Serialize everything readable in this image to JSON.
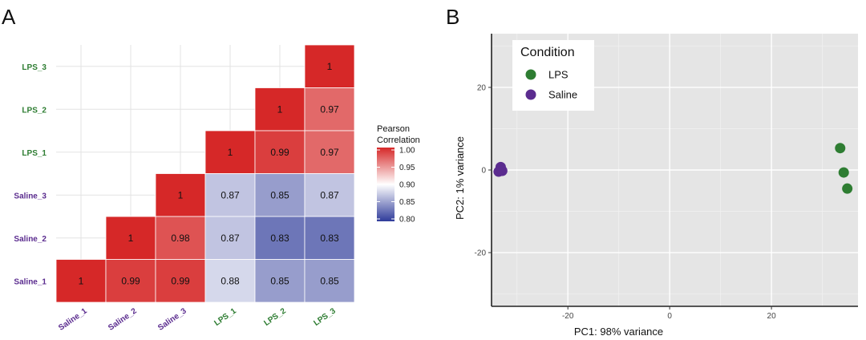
{
  "chart_data": [
    {
      "type": "heatmap",
      "panel": "A",
      "rows": [
        "LPS_3",
        "LPS_2",
        "LPS_1",
        "Saline_3",
        "Saline_2",
        "Saline_1"
      ],
      "columns": [
        "Saline_1",
        "Saline_2",
        "Saline_3",
        "LPS_1",
        "LPS_2",
        "LPS_3"
      ],
      "values": [
        [
          null,
          null,
          null,
          null,
          null,
          1
        ],
        [
          null,
          null,
          null,
          null,
          1,
          0.97
        ],
        [
          null,
          null,
          null,
          1,
          0.99,
          0.97
        ],
        [
          null,
          null,
          1,
          0.87,
          0.85,
          0.87
        ],
        [
          null,
          1,
          0.98,
          0.87,
          0.83,
          0.83
        ],
        [
          1,
          0.99,
          0.99,
          0.88,
          0.85,
          0.85
        ]
      ],
      "cell_labels": [
        [
          null,
          null,
          null,
          null,
          null,
          "1"
        ],
        [
          null,
          null,
          null,
          null,
          "1",
          "0.97"
        ],
        [
          null,
          null,
          null,
          "1",
          "0.99",
          "0.97"
        ],
        [
          null,
          null,
          "1",
          "0.87",
          "0.85",
          "0.87"
        ],
        [
          null,
          "1",
          "0.98",
          "0.87",
          "0.83",
          "0.83"
        ],
        [
          "1",
          "0.99",
          "0.99",
          "0.88",
          "0.85",
          "0.85"
        ]
      ],
      "legend": {
        "title_lines": [
          "Pearson",
          "Correlation"
        ],
        "ticks": [
          "1.00",
          "0.95",
          "0.90",
          "0.85",
          "0.80"
        ],
        "range": [
          0.8,
          1.0
        ],
        "midpoint": 0.9
      },
      "label_colors": {
        "LPS": "#2e7d32",
        "Saline": "#5b2c8f"
      },
      "colors": {
        "high": "#d62828",
        "mid": "#ffffff",
        "low": "#2f3b9a"
      }
    },
    {
      "type": "scatter",
      "panel": "B",
      "xlabel": "PC1: 98% variance",
      "ylabel": "PC2: 1% variance",
      "xlim": [
        -35,
        37
      ],
      "ylim": [
        -33,
        33
      ],
      "xticks": [
        "-20",
        "0",
        "20"
      ],
      "xtick_values": [
        -20,
        0,
        20
      ],
      "yticks": [
        "20",
        "0",
        "-20"
      ],
      "ytick_values": [
        20,
        0,
        -20
      ],
      "legend_title": "Condition",
      "series": [
        {
          "name": "LPS",
          "color": "#2e7d32",
          "points": [
            [
              33.5,
              5.3
            ],
            [
              34.2,
              -0.6
            ],
            [
              34.9,
              -4.5
            ]
          ]
        },
        {
          "name": "Saline",
          "color": "#5b2c8f",
          "points": [
            [
              -33.2,
              0.7
            ],
            [
              -33.6,
              -0.4
            ],
            [
              -32.9,
              -0.2
            ]
          ]
        }
      ],
      "background": "#e5e5e5"
    }
  ]
}
